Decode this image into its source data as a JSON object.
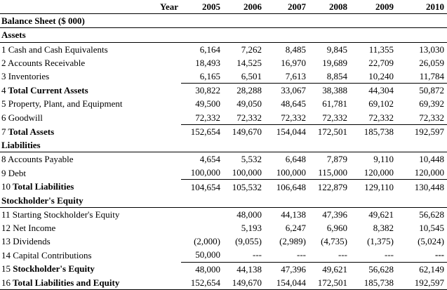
{
  "header": {
    "year_label": "Year",
    "years": [
      "2005",
      "2006",
      "2007",
      "2008",
      "2009",
      "2010"
    ]
  },
  "title": "Balance Sheet ($ 000)",
  "sections": [
    {
      "heading": "Assets",
      "rows": [
        {
          "num": "1",
          "label": "Cash and Cash Equivalents",
          "bold": false,
          "values": [
            "6,164",
            "7,262",
            "8,485",
            "9,845",
            "11,355",
            "13,030"
          ]
        },
        {
          "num": "2",
          "label": "Accounts Receivable",
          "bold": false,
          "values": [
            "18,493",
            "14,525",
            "16,970",
            "19,689",
            "22,709",
            "26,059"
          ]
        },
        {
          "num": "3",
          "label": "Inventories",
          "bold": false,
          "values": [
            "6,165",
            "6,501",
            "7,613",
            "8,854",
            "10,240",
            "11,784"
          ]
        },
        {
          "num": "4",
          "label": "Total Current Assets",
          "bold": true,
          "values": [
            "30,822",
            "28,288",
            "33,067",
            "38,388",
            "44,304",
            "50,872"
          ]
        },
        {
          "num": "5",
          "label": "Property, Plant, and Equipment",
          "bold": false,
          "values": [
            "49,500",
            "49,050",
            "48,645",
            "61,781",
            "69,102",
            "69,392"
          ]
        },
        {
          "num": "6",
          "label": "Goodwill",
          "bold": false,
          "values": [
            "72,332",
            "72,332",
            "72,332",
            "72,332",
            "72,332",
            "72,332"
          ]
        },
        {
          "num": "7",
          "label": "Total Assets",
          "bold": true,
          "values": [
            "152,654",
            "149,670",
            "154,044",
            "172,501",
            "185,738",
            "192,597"
          ]
        }
      ]
    },
    {
      "heading": "Liabilities",
      "rows": [
        {
          "num": "8",
          "label": "Accounts Payable",
          "bold": false,
          "values": [
            "4,654",
            "5,532",
            "6,648",
            "7,879",
            "9,110",
            "10,448"
          ]
        },
        {
          "num": "9",
          "label": "Debt",
          "bold": false,
          "values": [
            "100,000",
            "100,000",
            "100,000",
            "115,000",
            "120,000",
            "120,000"
          ]
        },
        {
          "num": "10",
          "label": "Total Liabilities",
          "bold": true,
          "values": [
            "104,654",
            "105,532",
            "106,648",
            "122,879",
            "129,110",
            "130,448"
          ]
        }
      ]
    },
    {
      "heading": "Stockholder's Equity",
      "rows": [
        {
          "num": "11",
          "label": "Starting Stockholder's Equity",
          "bold": false,
          "values": [
            "",
            "48,000",
            "44,138",
            "47,396",
            "49,621",
            "56,628"
          ]
        },
        {
          "num": "12",
          "label": "Net Income",
          "bold": false,
          "values": [
            "",
            "5,193",
            "6,247",
            "6,960",
            "8,382",
            "10,545"
          ]
        },
        {
          "num": "13",
          "label": "Dividends",
          "bold": false,
          "values": [
            "(2,000)",
            "(9,055)",
            "(2,989)",
            "(4,735)",
            "(1,375)",
            "(5,024)"
          ]
        },
        {
          "num": "14",
          "label": "Capital Contributions",
          "bold": false,
          "values": [
            "50,000",
            "---",
            "---",
            "---",
            "---",
            "---"
          ]
        },
        {
          "num": "15",
          "label": "Stockholder's Equity",
          "bold": true,
          "values": [
            "48,000",
            "44,138",
            "47,396",
            "49,621",
            "56,628",
            "62,149"
          ]
        },
        {
          "num": "16",
          "label": "Total Liabilities and Equity",
          "bold": true,
          "values": [
            "152,654",
            "149,670",
            "154,044",
            "172,501",
            "185,738",
            "192,597"
          ]
        }
      ]
    }
  ]
}
